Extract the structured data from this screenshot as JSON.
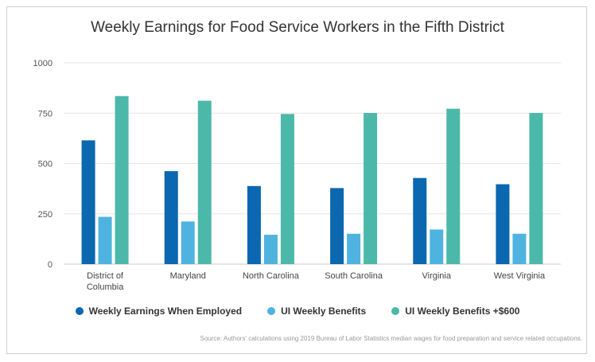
{
  "chart_data": {
    "type": "bar",
    "title": "Weekly Earnings for Food Service Workers in the Fifth District",
    "categories": [
      [
        "District of",
        "Columbia"
      ],
      [
        "Maryland"
      ],
      [
        "North Carolina"
      ],
      [
        "South Carolina"
      ],
      [
        "Virginia"
      ],
      [
        "West Virginia"
      ]
    ],
    "series": [
      {
        "name": "Weekly Earnings When Employed",
        "color": "#0b67b0",
        "values": [
          615,
          462,
          388,
          378,
          428,
          397
        ]
      },
      {
        "name": "UI Weekly Benefits",
        "color": "#4fb3e0",
        "values": [
          235,
          212,
          146,
          151,
          172,
          151
        ]
      },
      {
        "name": "UI Weekly Benefits +$600",
        "color": "#4cb8aa",
        "values": [
          835,
          812,
          746,
          751,
          772,
          751
        ]
      }
    ],
    "ylim": [
      0,
      1000
    ],
    "yticks": [
      0,
      250,
      500,
      750,
      1000
    ],
    "grid": true,
    "legend_position": "bottom",
    "source": "Source: Authors' calculations using 2019 Bureau of Labor Statistics median wages for food preparation and service related occupations."
  }
}
